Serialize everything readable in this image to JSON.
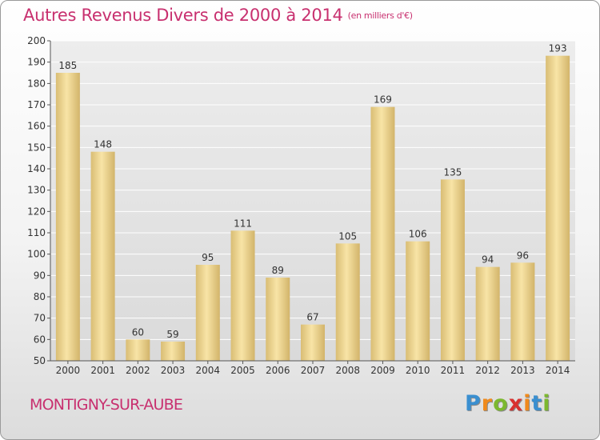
{
  "header": {
    "title": "Autres Revenus Divers de 2000 à 2014",
    "unit": "(en milliers d'€)"
  },
  "footer": {
    "commune": "MONTIGNY-SUR-AUBE",
    "logo_letters": [
      "P",
      "r",
      "o",
      "x",
      "i",
      "t",
      "i"
    ],
    "logo_colors": [
      "#3a8fd0",
      "#f08a1c",
      "#7cb82f",
      "#d8312f",
      "#f08a1c",
      "#3a8fd0",
      "#7cb82f"
    ]
  },
  "colors": {
    "accent": "#c8306f",
    "bar_light": "#f8e4a6",
    "bar_dark": "#d2b46a"
  },
  "chart_data": {
    "type": "bar",
    "categories": [
      "2000",
      "2001",
      "2002",
      "2003",
      "2004",
      "2005",
      "2006",
      "2007",
      "2008",
      "2009",
      "2010",
      "2011",
      "2012",
      "2013",
      "2014"
    ],
    "values": [
      185,
      148,
      60,
      59,
      95,
      111,
      89,
      67,
      105,
      169,
      106,
      135,
      94,
      96,
      193
    ],
    "title": "Autres Revenus Divers de 2000 à 2014",
    "subtitle": "(en milliers d'€)",
    "ylim": [
      50,
      200
    ],
    "yticks": [
      50,
      60,
      70,
      80,
      90,
      100,
      110,
      120,
      130,
      140,
      150,
      160,
      170,
      180,
      190,
      200
    ],
    "grid": true,
    "data_labels": true
  }
}
